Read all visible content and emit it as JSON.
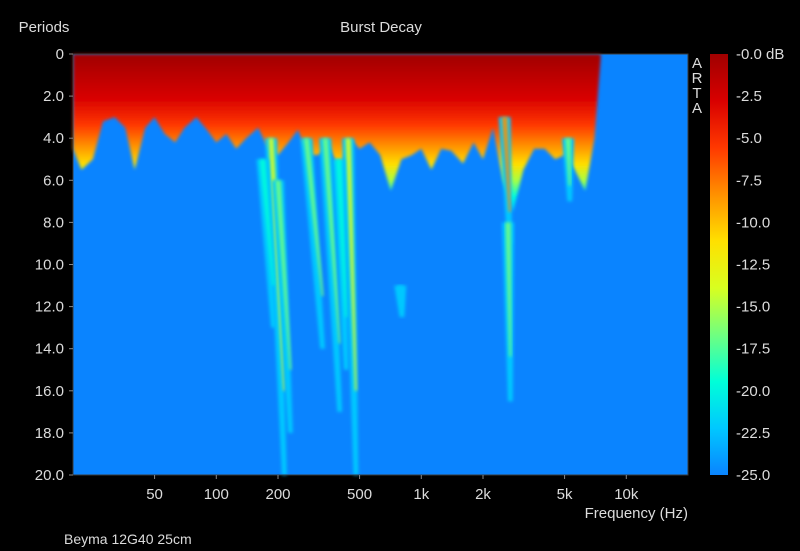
{
  "chart_data": {
    "type": "heatmap",
    "title": "Burst Decay",
    "ylabel": "Periods",
    "xlabel": "Frequency (Hz)",
    "footnote": "Beyma 12G40 25cm",
    "watermark": "ARTA",
    "x_scale": "log",
    "xlim": [
      20,
      20000
    ],
    "ylim": [
      0,
      20
    ],
    "x_ticks": [
      {
        "value": 50,
        "label": "50"
      },
      {
        "value": 100,
        "label": "100"
      },
      {
        "value": 200,
        "label": "200"
      },
      {
        "value": 500,
        "label": "500"
      },
      {
        "value": 1000,
        "label": "1k"
      },
      {
        "value": 2000,
        "label": "2k"
      },
      {
        "value": 5000,
        "label": "5k"
      },
      {
        "value": 10000,
        "label": "10k"
      }
    ],
    "y_ticks": [
      "0",
      "2.0",
      "4.0",
      "6.0",
      "8.0",
      "10.0",
      "12.0",
      "14.0",
      "16.0",
      "18.0",
      "20.0"
    ],
    "colorbar": {
      "range_db": [
        -25,
        0
      ],
      "tick_labels": [
        "-0.0 dB",
        "-2.5",
        "-5.0",
        "-7.5",
        "-10.0",
        "-12.5",
        "-15.0",
        "-17.5",
        "-20.0",
        "-22.5",
        "-25.0"
      ],
      "colors": [
        "#0a84ff",
        "#00c8ff",
        "#00ffd8",
        "#70ff80",
        "#d8ff20",
        "#ffe000",
        "#ff9000",
        "#ff3800",
        "#d80000",
        "#a00000"
      ]
    },
    "background_color": "#0a84ff",
    "response_edge_freq": 7500,
    "decay_profile": [
      {
        "f": 20,
        "periods": 4.5
      },
      {
        "f": 22,
        "periods": 5.5
      },
      {
        "f": 25,
        "periods": 5.0
      },
      {
        "f": 28,
        "periods": 3.2
      },
      {
        "f": 32,
        "periods": 3.0
      },
      {
        "f": 36,
        "periods": 3.5
      },
      {
        "f": 40,
        "periods": 5.5
      },
      {
        "f": 45,
        "periods": 3.5
      },
      {
        "f": 50,
        "periods": 3.0
      },
      {
        "f": 56,
        "periods": 3.8
      },
      {
        "f": 63,
        "periods": 4.2
      },
      {
        "f": 70,
        "periods": 3.5
      },
      {
        "f": 80,
        "periods": 3.0
      },
      {
        "f": 90,
        "periods": 3.6
      },
      {
        "f": 100,
        "periods": 4.2
      },
      {
        "f": 112,
        "periods": 3.8
      },
      {
        "f": 125,
        "periods": 4.5
      },
      {
        "f": 140,
        "periods": 4.0
      },
      {
        "f": 160,
        "periods": 3.5
      },
      {
        "f": 180,
        "periods": 4.5
      },
      {
        "f": 200,
        "periods": 4.8
      },
      {
        "f": 225,
        "periods": 4.2
      },
      {
        "f": 250,
        "periods": 3.6
      },
      {
        "f": 280,
        "periods": 4.8
      },
      {
        "f": 315,
        "periods": 4.8
      },
      {
        "f": 355,
        "periods": 4.4
      },
      {
        "f": 400,
        "periods": 5.5
      },
      {
        "f": 450,
        "periods": 4.0
      },
      {
        "f": 500,
        "periods": 4.5
      },
      {
        "f": 560,
        "periods": 4.2
      },
      {
        "f": 630,
        "periods": 4.8
      },
      {
        "f": 710,
        "periods": 6.5
      },
      {
        "f": 800,
        "periods": 5.0
      },
      {
        "f": 900,
        "periods": 4.8
      },
      {
        "f": 1000,
        "periods": 4.5
      },
      {
        "f": 1120,
        "periods": 5.5
      },
      {
        "f": 1250,
        "periods": 4.5
      },
      {
        "f": 1400,
        "periods": 4.6
      },
      {
        "f": 1600,
        "periods": 5.2
      },
      {
        "f": 1800,
        "periods": 4.2
      },
      {
        "f": 2000,
        "periods": 5.0
      },
      {
        "f": 2240,
        "periods": 3.5
      },
      {
        "f": 2500,
        "periods": 6.0
      },
      {
        "f": 2800,
        "periods": 7.5
      },
      {
        "f": 3150,
        "periods": 5.5
      },
      {
        "f": 3550,
        "periods": 4.5
      },
      {
        "f": 4000,
        "periods": 4.5
      },
      {
        "f": 4500,
        "periods": 5.0
      },
      {
        "f": 5000,
        "periods": 4.8
      },
      {
        "f": 5600,
        "periods": 5.5
      },
      {
        "f": 6300,
        "periods": 6.5
      },
      {
        "f": 7000,
        "periods": 4.0
      }
    ],
    "resonance_tails": [
      {
        "f": 185,
        "f_end": 215,
        "from_periods": 4,
        "to_periods": 20,
        "peak_db": -15
      },
      {
        "f": 168,
        "f_end": 190,
        "from_periods": 5,
        "to_periods": 13,
        "peak_db": -19
      },
      {
        "f": 200,
        "f_end": 230,
        "from_periods": 6,
        "to_periods": 18,
        "peak_db": -17
      },
      {
        "f": 275,
        "f_end": 330,
        "from_periods": 4,
        "to_periods": 14,
        "peak_db": -16
      },
      {
        "f": 340,
        "f_end": 400,
        "from_periods": 4,
        "to_periods": 17,
        "peak_db": -16
      },
      {
        "f": 440,
        "f_end": 480,
        "from_periods": 4,
        "to_periods": 20,
        "peak_db": -15
      },
      {
        "f": 395,
        "f_end": 430,
        "from_periods": 5,
        "to_periods": 15,
        "peak_db": -19
      },
      {
        "f": 790,
        "f_end": 805,
        "from_periods": 11,
        "to_periods": 12.5,
        "peak_db": -21
      },
      {
        "f": 2550,
        "f_end": 2700,
        "from_periods": 3,
        "to_periods": 9,
        "peak_db": -7
      },
      {
        "f": 2650,
        "f_end": 2720,
        "from_periods": 8,
        "to_periods": 16.5,
        "peak_db": -18
      },
      {
        "f": 5200,
        "f_end": 5300,
        "from_periods": 4,
        "to_periods": 7,
        "peak_db": -18
      }
    ]
  }
}
